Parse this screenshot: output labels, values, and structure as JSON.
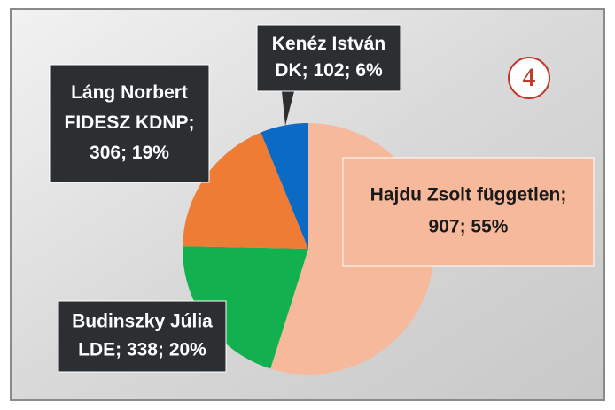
{
  "chart_data": {
    "type": "pie",
    "annotation": "4",
    "values": [
      907,
      338,
      306,
      102
    ],
    "value_labels": [
      [
        "Hajdu Zsolt független;",
        "907; 55%"
      ],
      [
        "Budinszky Júlia",
        "LDE; 338; 20%"
      ],
      [
        "Láng Norbert",
        "FIDESZ KDNP;",
        "306; 19%"
      ],
      [
        "Kenéz István",
        "DK; 102; 6%"
      ]
    ],
    "colors": [
      "#f7b99b",
      "#13b04f",
      "#ef7c34",
      "#0b6bc4"
    ]
  }
}
